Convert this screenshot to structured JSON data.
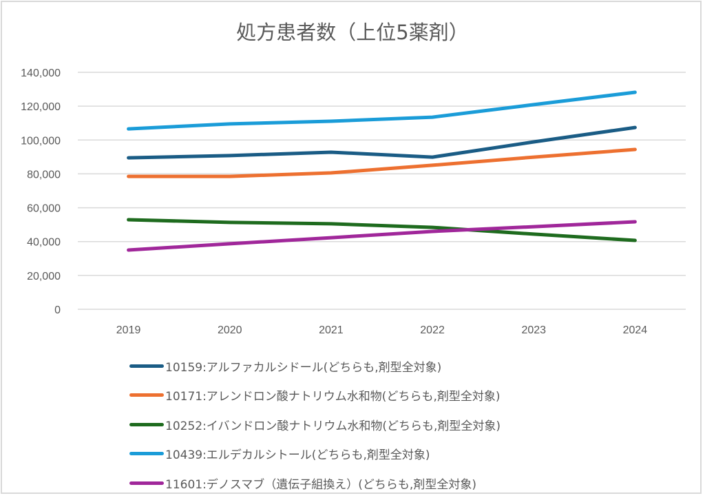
{
  "chart_data": {
    "type": "line",
    "title": "処方患者数（上位5薬剤）",
    "xlabel": "",
    "ylabel": "",
    "categories": [
      "2019",
      "2020",
      "2021",
      "2022",
      "2023",
      "2024"
    ],
    "ylim": [
      0,
      140000
    ],
    "yticks": [
      0,
      20000,
      40000,
      60000,
      80000,
      100000,
      120000,
      140000
    ],
    "ytick_labels": [
      "0",
      "20,000",
      "40,000",
      "60,000",
      "80,000",
      "100,000",
      "120,000",
      "140,000"
    ],
    "grid": true,
    "legend_position": "bottom",
    "series": [
      {
        "name": "10159:アルファカルシドール(どちらも,剤型全対象)",
        "color": "#1a5c85",
        "values": [
          89500,
          90800,
          92800,
          89900,
          98900,
          107400
        ]
      },
      {
        "name": "10171:アレンドロン酸ナトリウム水和物(どちらも,剤型全対象)",
        "color": "#ed7030",
        "values": [
          78500,
          78500,
          80600,
          85100,
          89900,
          94400
        ]
      },
      {
        "name": "10252:イバンドロン酸ナトリウム水和物(どちらも,剤型全対象)",
        "color": "#1e6b1e",
        "values": [
          52900,
          51300,
          50500,
          48400,
          44400,
          40700
        ]
      },
      {
        "name": "10439:エルデカルシトール(どちらも,剤型全対象)",
        "color": "#1a9cd8",
        "values": [
          106600,
          109500,
          111100,
          113500,
          120900,
          128200
        ]
      },
      {
        "name": "11601:デノスマブ（遺伝子組換え）(どちらも,剤型全対象)",
        "color": "#a0279a",
        "values": [
          35000,
          38700,
          42300,
          46000,
          48800,
          51700
        ]
      }
    ]
  }
}
